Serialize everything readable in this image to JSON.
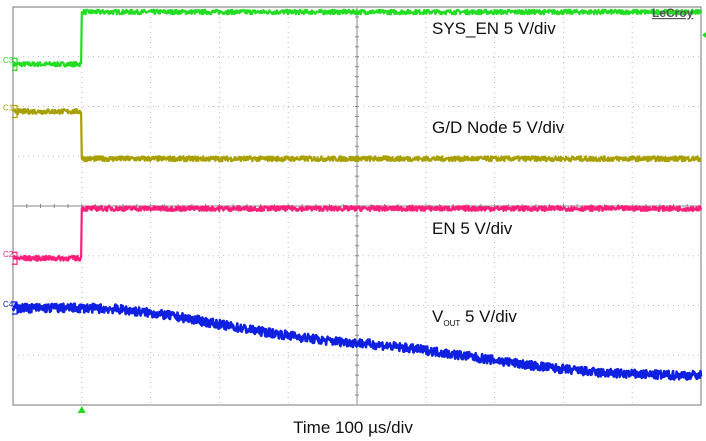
{
  "brand": "LeCroy",
  "time_label": "Time 100 µs/div",
  "chart_data": {
    "type": "line",
    "grid": true,
    "divisions": {
      "x": 10,
      "y": 8
    },
    "x_unit": "µs",
    "x_per_div": 100,
    "xlim": [
      0,
      1000
    ],
    "ylim": [
      0,
      8
    ],
    "trigger_time": 100,
    "series": [
      {
        "name": "SYS_EN 5 V/div",
        "channel_marker": "C3",
        "color": "#22dd22",
        "x": [
          0,
          99,
          100,
          1000
        ],
        "y": [
          6.85,
          6.85,
          7.9,
          7.9
        ]
      },
      {
        "name": "G/D Node 5 V/div",
        "channel_marker": "C1",
        "color": "#a8a000",
        "x": [
          0,
          99,
          100,
          1000
        ],
        "y": [
          5.9,
          5.9,
          4.95,
          4.95
        ]
      },
      {
        "name": "EN 5 V/div",
        "channel_marker": "C2",
        "color": "#ff1f7a",
        "x": [
          0,
          99,
          100,
          1000
        ],
        "y": [
          2.95,
          2.95,
          3.95,
          3.95
        ]
      },
      {
        "name_main": "V",
        "name_sub": "OUT",
        "name_rest": " 5 V/div",
        "channel_marker": "C4",
        "color": "#1020e0",
        "x": [
          0,
          100,
          150,
          200,
          250,
          300,
          350,
          400,
          450,
          500,
          550,
          600,
          650,
          700,
          750,
          800,
          850,
          900,
          950,
          1000
        ],
        "y": [
          1.95,
          1.95,
          1.93,
          1.85,
          1.75,
          1.62,
          1.5,
          1.4,
          1.3,
          1.25,
          1.18,
          1.1,
          1.0,
          0.9,
          0.8,
          0.72,
          0.65,
          0.62,
          0.6,
          0.6
        ]
      }
    ]
  }
}
